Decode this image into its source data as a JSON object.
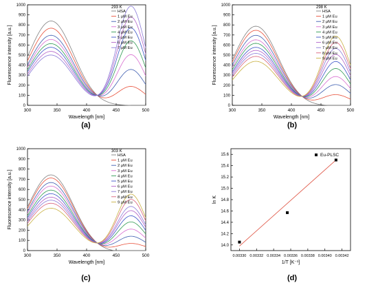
{
  "chart_data": [
    {
      "type": "line",
      "panel_label": "(a)",
      "temperature_label": "293 K",
      "xlabel": "Wavelength [nm]",
      "ylabel": "Fluorescence intensity [a.u.]",
      "xlim": [
        300,
        500
      ],
      "ylim": [
        0,
        1000
      ],
      "xticks": [
        300,
        350,
        400,
        450,
        500
      ],
      "yticks": [
        0,
        100,
        200,
        300,
        400,
        500,
        600,
        700,
        800,
        900,
        1000
      ],
      "legend_position": "top-right",
      "isosbestic_point": {
        "x": 418,
        "y": 100
      },
      "series": [
        {
          "name": "HSA",
          "color": "#808080",
          "peak1": 840,
          "peak2": 0
        },
        {
          "name": "1 μM Eu",
          "color": "#e8503a",
          "peak1": 770,
          "peak2": 190
        },
        {
          "name": "2 μM Eu",
          "color": "#3d5db0",
          "peak1": 700,
          "peak2": 360
        },
        {
          "name": "3 μM Eu",
          "color": "#d86cd0",
          "peak1": 660,
          "peak2": 510
        },
        {
          "name": "4 μM Eu",
          "color": "#2f9a52",
          "peak1": 620,
          "peak2": 650
        },
        {
          "name": "5 μM Eu",
          "color": "#3b54c8",
          "peak1": 585,
          "peak2": 780
        },
        {
          "name": "6 μM Eu",
          "color": "#b060c8",
          "peak1": 545,
          "peak2": 890
        },
        {
          "name": "7 μM Eu",
          "color": "#8a7ad8",
          "peak1": 510,
          "peak2": 1000
        }
      ]
    },
    {
      "type": "line",
      "panel_label": "(b)",
      "temperature_label": "298 K",
      "xlabel": "Wavelength [nm]",
      "ylabel": "Fluorescence intensity [a.u.]",
      "xlim": [
        300,
        500
      ],
      "ylim": [
        0,
        1000
      ],
      "xticks": [
        300,
        350,
        400,
        450,
        500
      ],
      "yticks": [
        0,
        100,
        200,
        300,
        400,
        500,
        600,
        700,
        800,
        900,
        1000
      ],
      "legend_position": "top-right",
      "isosbestic_point": {
        "x": 418,
        "y": 90
      },
      "series": [
        {
          "name": "HSA",
          "color": "#808080",
          "peak1": 790,
          "peak2": 0
        },
        {
          "name": "1 μM Eu",
          "color": "#e8503a",
          "peak1": 750,
          "peak2": 110
        },
        {
          "name": "2 μM Eu",
          "color": "#3d5db0",
          "peak1": 700,
          "peak2": 210
        },
        {
          "name": "3 μM Eu",
          "color": "#d86cd0",
          "peak1": 655,
          "peak2": 290
        },
        {
          "name": "4 μM Eu",
          "color": "#2f9a52",
          "peak1": 620,
          "peak2": 370
        },
        {
          "name": "5 μM Eu",
          "color": "#3b54c8",
          "peak1": 580,
          "peak2": 440
        },
        {
          "name": "6 μM Eu",
          "color": "#b060c8",
          "peak1": 550,
          "peak2": 510
        },
        {
          "name": "7 μM Eu",
          "color": "#8a7ad8",
          "peak1": 520,
          "peak2": 570
        },
        {
          "name": "8 μM Eu",
          "color": "#d8607a",
          "peak1": 490,
          "peak2": 630
        },
        {
          "name": "9 μM Eu",
          "color": "#c8b040",
          "peak1": 440,
          "peak2": 690
        }
      ]
    },
    {
      "type": "line",
      "panel_label": "(c)",
      "temperature_label": "303 K",
      "xlabel": "Wavelength [nm]",
      "ylabel": "Fluorescence intensity [a.u.]",
      "xlim": [
        300,
        500
      ],
      "ylim": [
        0,
        1000
      ],
      "xticks": [
        300,
        350,
        400,
        450,
        500
      ],
      "yticks": [
        0,
        100,
        200,
        300,
        400,
        500,
        600,
        700,
        800,
        900,
        1000
      ],
      "legend_position": "top-right",
      "isosbestic_point": {
        "x": 418,
        "y": 75
      },
      "series": [
        {
          "name": "HSA",
          "color": "#808080",
          "peak1": 750,
          "peak2": 0
        },
        {
          "name": "1 μM Eu",
          "color": "#e8503a",
          "peak1": 720,
          "peak2": 80
        },
        {
          "name": "2 μM Eu",
          "color": "#3d5db0",
          "peak1": 675,
          "peak2": 150
        },
        {
          "name": "3 μM Eu",
          "color": "#d86cd0",
          "peak1": 640,
          "peak2": 220
        },
        {
          "name": "4 μM Eu",
          "color": "#2f9a52",
          "peak1": 600,
          "peak2": 290
        },
        {
          "name": "5 μM Eu",
          "color": "#3b54c8",
          "peak1": 565,
          "peak2": 350
        },
        {
          "name": "6 μM Eu",
          "color": "#b060c8",
          "peak1": 530,
          "peak2": 400
        },
        {
          "name": "7 μM Eu",
          "color": "#8a7ad8",
          "peak1": 500,
          "peak2": 440
        },
        {
          "name": "8 μM Eu",
          "color": "#d8607a",
          "peak1": 470,
          "peak2": 510
        },
        {
          "name": "9 μM Eu",
          "color": "#c8b040",
          "peak1": 420,
          "peak2": 560
        }
      ]
    },
    {
      "type": "scatter",
      "panel_label": "(d)",
      "xlabel": "1/T [K⁻¹]",
      "ylabel": "ln K",
      "xlim": [
        0.00329,
        0.00343
      ],
      "ylim": [
        13.9,
        15.7
      ],
      "xticks": [
        "0.00330",
        "0.00332",
        "0.00334",
        "0.00336",
        "0.00338",
        "0.00340",
        "0.00342"
      ],
      "xtick_values": [
        0.0033,
        0.00332,
        0.00334,
        0.00336,
        0.00338,
        0.0034,
        0.00342
      ],
      "yticks": [
        "14.0",
        "14.2",
        "14.4",
        "14.6",
        "14.8",
        "15.0",
        "15.2",
        "15.4",
        "15.6"
      ],
      "ytick_values": [
        14.0,
        14.2,
        14.4,
        14.6,
        14.8,
        15.0,
        15.2,
        15.4,
        15.6
      ],
      "legend_position": "top-right",
      "series": [
        {
          "name": "Eu-PLSC",
          "marker": "square",
          "color": "#000000",
          "x": [
            0.0033,
            0.003356,
            0.003413
          ],
          "y": [
            14.05,
            14.57,
            15.5
          ]
        }
      ],
      "fit_line": {
        "color": "#e05a4a",
        "x": [
          0.0033,
          0.003413
        ],
        "y": [
          13.98,
          15.5
        ]
      }
    }
  ]
}
